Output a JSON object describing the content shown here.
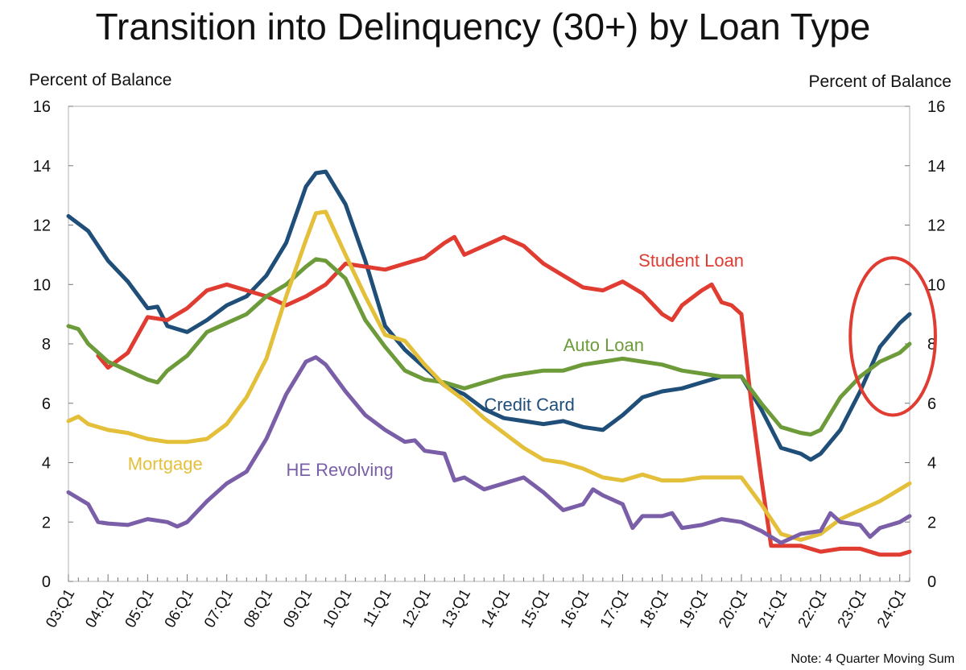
{
  "chart_data": {
    "type": "line",
    "title": "Transition into Delinquency (30+) by Loan Type",
    "ylabel_left": "Percent of Balance",
    "ylabel_right": "Percent of Balance",
    "note": "Note: 4 Quarter Moving Sum",
    "ylim": [
      0,
      16
    ],
    "yticks": [
      "0",
      "2",
      "4",
      "6",
      "8",
      "10",
      "12",
      "14",
      "16"
    ],
    "xlim": [
      2003.0,
      2024.25
    ],
    "x_tick_labels": [
      "03:Q1",
      "04:Q1",
      "05:Q1",
      "06:Q1",
      "07:Q1",
      "08:Q1",
      "09:Q1",
      "10:Q1",
      "11:Q1",
      "12:Q1",
      "13:Q1",
      "14:Q1",
      "15:Q1",
      "16:Q1",
      "17:Q1",
      "18:Q1",
      "19:Q1",
      "20:Q1",
      "21:Q1",
      "22:Q1",
      "23:Q1",
      "24:Q1"
    ],
    "grid": false,
    "series": [
      {
        "name": "Credit Card",
        "color": "#1f4e79",
        "points": [
          [
            2003.0,
            12.3
          ],
          [
            2003.5,
            11.8
          ],
          [
            2004.0,
            10.8
          ],
          [
            2004.5,
            10.1
          ],
          [
            2005.0,
            9.2
          ],
          [
            2005.25,
            9.25
          ],
          [
            2005.5,
            8.6
          ],
          [
            2006.0,
            8.4
          ],
          [
            2006.5,
            8.8
          ],
          [
            2007.0,
            9.3
          ],
          [
            2007.5,
            9.6
          ],
          [
            2008.0,
            10.3
          ],
          [
            2008.5,
            11.4
          ],
          [
            2009.0,
            13.3
          ],
          [
            2009.25,
            13.75
          ],
          [
            2009.5,
            13.8
          ],
          [
            2010.0,
            12.7
          ],
          [
            2010.5,
            10.8
          ],
          [
            2011.0,
            8.6
          ],
          [
            2011.5,
            7.8
          ],
          [
            2012.0,
            7.2
          ],
          [
            2012.5,
            6.6
          ],
          [
            2013.0,
            6.3
          ],
          [
            2013.5,
            5.8
          ],
          [
            2014.0,
            5.5
          ],
          [
            2014.5,
            5.4
          ],
          [
            2015.0,
            5.3
          ],
          [
            2015.5,
            5.4
          ],
          [
            2016.0,
            5.2
          ],
          [
            2016.5,
            5.1
          ],
          [
            2017.0,
            5.6
          ],
          [
            2017.5,
            6.2
          ],
          [
            2018.0,
            6.4
          ],
          [
            2018.5,
            6.5
          ],
          [
            2019.0,
            6.7
          ],
          [
            2019.5,
            6.9
          ],
          [
            2020.0,
            6.9
          ],
          [
            2020.5,
            5.8
          ],
          [
            2021.0,
            4.5
          ],
          [
            2021.5,
            4.3
          ],
          [
            2021.75,
            4.1
          ],
          [
            2022.0,
            4.3
          ],
          [
            2022.5,
            5.1
          ],
          [
            2023.0,
            6.4
          ],
          [
            2023.5,
            7.9
          ],
          [
            2024.0,
            8.7
          ],
          [
            2024.25,
            9.0
          ]
        ]
      },
      {
        "name": "Student Loan",
        "color": "#e03c31",
        "points": [
          [
            2003.75,
            7.6
          ],
          [
            2004.0,
            7.2
          ],
          [
            2004.5,
            7.7
          ],
          [
            2005.0,
            8.9
          ],
          [
            2005.5,
            8.8
          ],
          [
            2006.0,
            9.2
          ],
          [
            2006.5,
            9.8
          ],
          [
            2007.0,
            10.0
          ],
          [
            2007.5,
            9.8
          ],
          [
            2008.0,
            9.6
          ],
          [
            2008.5,
            9.3
          ],
          [
            2009.0,
            9.6
          ],
          [
            2009.5,
            10.0
          ],
          [
            2010.0,
            10.7
          ],
          [
            2010.5,
            10.6
          ],
          [
            2011.0,
            10.5
          ],
          [
            2011.5,
            10.7
          ],
          [
            2012.0,
            10.9
          ],
          [
            2012.5,
            11.4
          ],
          [
            2012.75,
            11.6
          ],
          [
            2013.0,
            11.0
          ],
          [
            2013.5,
            11.3
          ],
          [
            2014.0,
            11.6
          ],
          [
            2014.5,
            11.3
          ],
          [
            2015.0,
            10.7
          ],
          [
            2015.5,
            10.3
          ],
          [
            2016.0,
            9.9
          ],
          [
            2016.5,
            9.8
          ],
          [
            2017.0,
            10.1
          ],
          [
            2017.5,
            9.7
          ],
          [
            2018.0,
            9.0
          ],
          [
            2018.25,
            8.8
          ],
          [
            2018.5,
            9.3
          ],
          [
            2019.0,
            9.8
          ],
          [
            2019.25,
            10.0
          ],
          [
            2019.5,
            9.4
          ],
          [
            2019.75,
            9.3
          ],
          [
            2020.0,
            9.0
          ],
          [
            2020.25,
            6.0
          ],
          [
            2020.5,
            3.5
          ],
          [
            2020.75,
            1.2
          ],
          [
            2021.0,
            1.2
          ],
          [
            2021.5,
            1.2
          ],
          [
            2022.0,
            1.0
          ],
          [
            2022.5,
            1.1
          ],
          [
            2023.0,
            1.1
          ],
          [
            2023.5,
            0.9
          ],
          [
            2024.0,
            0.9
          ],
          [
            2024.25,
            1.0
          ]
        ]
      },
      {
        "name": "Auto Loan",
        "color": "#6d9b3a",
        "points": [
          [
            2003.0,
            8.6
          ],
          [
            2003.25,
            8.5
          ],
          [
            2003.5,
            8.0
          ],
          [
            2004.0,
            7.4
          ],
          [
            2004.5,
            7.1
          ],
          [
            2005.0,
            6.8
          ],
          [
            2005.25,
            6.7
          ],
          [
            2005.5,
            7.1
          ],
          [
            2006.0,
            7.6
          ],
          [
            2006.5,
            8.4
          ],
          [
            2007.0,
            8.7
          ],
          [
            2007.5,
            9.0
          ],
          [
            2008.0,
            9.6
          ],
          [
            2008.5,
            10.0
          ],
          [
            2009.0,
            10.6
          ],
          [
            2009.25,
            10.85
          ],
          [
            2009.5,
            10.8
          ],
          [
            2010.0,
            10.2
          ],
          [
            2010.5,
            8.8
          ],
          [
            2011.0,
            7.9
          ],
          [
            2011.5,
            7.1
          ],
          [
            2012.0,
            6.8
          ],
          [
            2012.5,
            6.7
          ],
          [
            2013.0,
            6.5
          ],
          [
            2013.5,
            6.7
          ],
          [
            2014.0,
            6.9
          ],
          [
            2014.5,
            7.0
          ],
          [
            2015.0,
            7.1
          ],
          [
            2015.5,
            7.1
          ],
          [
            2016.0,
            7.3
          ],
          [
            2016.5,
            7.4
          ],
          [
            2017.0,
            7.5
          ],
          [
            2017.5,
            7.4
          ],
          [
            2018.0,
            7.3
          ],
          [
            2018.5,
            7.1
          ],
          [
            2019.0,
            7.0
          ],
          [
            2019.5,
            6.9
          ],
          [
            2020.0,
            6.9
          ],
          [
            2020.5,
            6.0
          ],
          [
            2021.0,
            5.2
          ],
          [
            2021.5,
            5.0
          ],
          [
            2021.75,
            4.95
          ],
          [
            2022.0,
            5.1
          ],
          [
            2022.5,
            6.2
          ],
          [
            2023.0,
            6.9
          ],
          [
            2023.5,
            7.4
          ],
          [
            2024.0,
            7.7
          ],
          [
            2024.25,
            8.0
          ]
        ]
      },
      {
        "name": "Mortgage",
        "color": "#e3bf3a",
        "points": [
          [
            2003.0,
            5.4
          ],
          [
            2003.25,
            5.55
          ],
          [
            2003.5,
            5.3
          ],
          [
            2004.0,
            5.1
          ],
          [
            2004.5,
            5.0
          ],
          [
            2005.0,
            4.8
          ],
          [
            2005.5,
            4.7
          ],
          [
            2006.0,
            4.7
          ],
          [
            2006.5,
            4.8
          ],
          [
            2007.0,
            5.3
          ],
          [
            2007.5,
            6.2
          ],
          [
            2008.0,
            7.5
          ],
          [
            2008.5,
            9.6
          ],
          [
            2009.0,
            11.5
          ],
          [
            2009.25,
            12.4
          ],
          [
            2009.5,
            12.45
          ],
          [
            2010.0,
            11.0
          ],
          [
            2010.5,
            9.6
          ],
          [
            2011.0,
            8.3
          ],
          [
            2011.5,
            8.1
          ],
          [
            2012.0,
            7.3
          ],
          [
            2012.5,
            6.6
          ],
          [
            2013.0,
            6.1
          ],
          [
            2013.5,
            5.5
          ],
          [
            2014.0,
            5.0
          ],
          [
            2014.5,
            4.5
          ],
          [
            2015.0,
            4.1
          ],
          [
            2015.5,
            4.0
          ],
          [
            2016.0,
            3.8
          ],
          [
            2016.5,
            3.5
          ],
          [
            2017.0,
            3.4
          ],
          [
            2017.5,
            3.6
          ],
          [
            2018.0,
            3.4
          ],
          [
            2018.5,
            3.4
          ],
          [
            2019.0,
            3.5
          ],
          [
            2019.5,
            3.5
          ],
          [
            2020.0,
            3.5
          ],
          [
            2020.5,
            2.6
          ],
          [
            2021.0,
            1.6
          ],
          [
            2021.5,
            1.4
          ],
          [
            2022.0,
            1.6
          ],
          [
            2022.5,
            2.1
          ],
          [
            2023.0,
            2.4
          ],
          [
            2023.5,
            2.7
          ],
          [
            2024.0,
            3.1
          ],
          [
            2024.25,
            3.3
          ]
        ]
      },
      {
        "name": "HE Revolving",
        "color": "#7a5ea8",
        "points": [
          [
            2003.0,
            3.0
          ],
          [
            2003.5,
            2.6
          ],
          [
            2003.75,
            2.0
          ],
          [
            2004.0,
            1.95
          ],
          [
            2004.5,
            1.9
          ],
          [
            2005.0,
            2.1
          ],
          [
            2005.5,
            2.0
          ],
          [
            2005.75,
            1.85
          ],
          [
            2006.0,
            2.0
          ],
          [
            2006.5,
            2.7
          ],
          [
            2007.0,
            3.3
          ],
          [
            2007.5,
            3.7
          ],
          [
            2008.0,
            4.8
          ],
          [
            2008.5,
            6.3
          ],
          [
            2009.0,
            7.4
          ],
          [
            2009.25,
            7.55
          ],
          [
            2009.5,
            7.3
          ],
          [
            2010.0,
            6.4
          ],
          [
            2010.5,
            5.6
          ],
          [
            2011.0,
            5.1
          ],
          [
            2011.5,
            4.7
          ],
          [
            2011.75,
            4.75
          ],
          [
            2012.0,
            4.4
          ],
          [
            2012.5,
            4.3
          ],
          [
            2012.75,
            3.4
          ],
          [
            2013.0,
            3.5
          ],
          [
            2013.5,
            3.1
          ],
          [
            2014.0,
            3.3
          ],
          [
            2014.5,
            3.5
          ],
          [
            2015.0,
            3.0
          ],
          [
            2015.5,
            2.4
          ],
          [
            2016.0,
            2.6
          ],
          [
            2016.25,
            3.1
          ],
          [
            2016.5,
            2.9
          ],
          [
            2017.0,
            2.6
          ],
          [
            2017.25,
            1.8
          ],
          [
            2017.5,
            2.2
          ],
          [
            2018.0,
            2.2
          ],
          [
            2018.25,
            2.3
          ],
          [
            2018.5,
            1.8
          ],
          [
            2019.0,
            1.9
          ],
          [
            2019.5,
            2.1
          ],
          [
            2020.0,
            2.0
          ],
          [
            2020.5,
            1.7
          ],
          [
            2021.0,
            1.3
          ],
          [
            2021.5,
            1.6
          ],
          [
            2022.0,
            1.7
          ],
          [
            2022.25,
            2.3
          ],
          [
            2022.5,
            2.0
          ],
          [
            2023.0,
            1.9
          ],
          [
            2023.25,
            1.5
          ],
          [
            2023.5,
            1.8
          ],
          [
            2024.0,
            2.0
          ],
          [
            2024.25,
            2.2
          ]
        ]
      }
    ],
    "annotation": {
      "type": "ellipse",
      "color": "#e03c31",
      "x_range": [
        2022.75,
        2024.9
      ],
      "y_range": [
        5.6,
        10.9
      ]
    }
  }
}
